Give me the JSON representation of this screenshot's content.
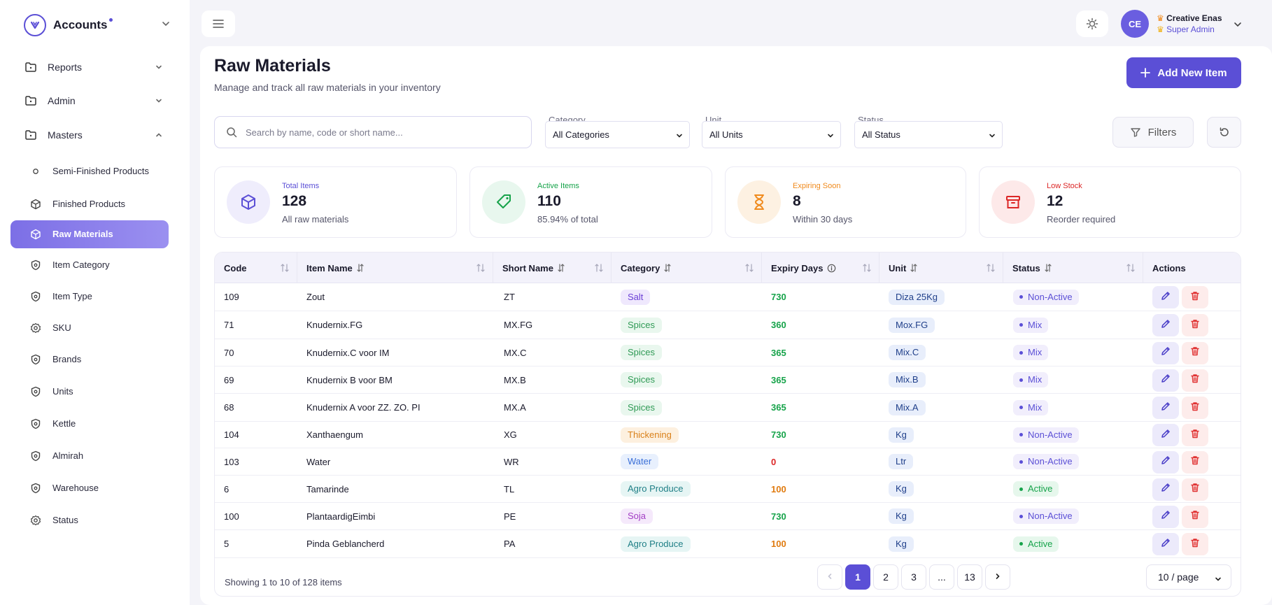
{
  "sidebar": {
    "brand": "Accounts",
    "sections": [
      {
        "label": "Reports",
        "icon": "folder-icon",
        "expanded": false
      },
      {
        "label": "Admin",
        "icon": "folder-icon",
        "expanded": false
      },
      {
        "label": "Masters",
        "icon": "folder-icon",
        "expanded": true
      }
    ],
    "items": [
      {
        "label": "Semi-Finished Products",
        "icon": "circle-icon"
      },
      {
        "label": "Finished Products",
        "icon": "box-icon"
      },
      {
        "label": "Raw Materials",
        "icon": "box-icon",
        "active": true
      },
      {
        "label": "Item Category",
        "icon": "shield-icon"
      },
      {
        "label": "Item Type",
        "icon": "shield-icon"
      },
      {
        "label": "SKU",
        "icon": "gear-icon"
      },
      {
        "label": "Brands",
        "icon": "shield-icon"
      },
      {
        "label": "Units",
        "icon": "shield-icon"
      },
      {
        "label": "Kettle",
        "icon": "shield-icon"
      },
      {
        "label": "Almirah",
        "icon": "shield-icon"
      },
      {
        "label": "Warehouse",
        "icon": "shield-icon"
      },
      {
        "label": "Status",
        "icon": "gear-icon"
      }
    ]
  },
  "header": {
    "avatar_initials": "CE",
    "user_name": "Creative Enas",
    "user_role": "Super Admin"
  },
  "page": {
    "title": "Raw Materials",
    "subtitle": "Manage and track all raw materials in your inventory",
    "add_button": "Add New Item"
  },
  "filters": {
    "search_placeholder": "Search by name, code or short name...",
    "category_label": "Category",
    "category_value": "All Categories",
    "unit_label": "Unit",
    "unit_value": "All Units",
    "status_label": "Status",
    "status_value": "All Status",
    "filters_button": "Filters"
  },
  "stats": [
    {
      "label": "Total Items",
      "value": "128",
      "note": "All raw materials",
      "color": "#5b4fd6",
      "bg": "#efedfc"
    },
    {
      "label": "Active Items",
      "value": "110",
      "note": "85.94% of total",
      "color": "#16a34a",
      "bg": "#e8f7ee"
    },
    {
      "label": "Expiring Soon",
      "value": "8",
      "note": "Within 30 days",
      "color": "#f08a1c",
      "bg": "#fdf1e2"
    },
    {
      "label": "Low Stock",
      "value": "12",
      "note": "Reorder required",
      "color": "#dc2626",
      "bg": "#fde9e9"
    }
  ],
  "table": {
    "columns": [
      "Code",
      "Item Name",
      "Short Name",
      "Category",
      "Expiry Days",
      "Unit",
      "Status",
      "Actions"
    ],
    "rows": [
      {
        "code": "109",
        "name": "Zout",
        "short": "ZT",
        "category": "Salt",
        "expiry": "730",
        "unit": "Diza 25Kg",
        "status": "Non-Active"
      },
      {
        "code": "71",
        "name": "Knudernix.FG",
        "short": "MX.FG",
        "category": "Spices",
        "expiry": "360",
        "unit": "Mox.FG",
        "status": "Mix"
      },
      {
        "code": "70",
        "name": "Knudernix.C voor IM",
        "short": "MX.C",
        "category": "Spices",
        "expiry": "365",
        "unit": "Mix.C",
        "status": "Mix"
      },
      {
        "code": "69",
        "name": "Knudernix B voor BM",
        "short": "MX.B",
        "category": "Spices",
        "expiry": "365",
        "unit": "Mix.B",
        "status": "Mix"
      },
      {
        "code": "68",
        "name": "Knudernix A voor ZZ. ZO. PI",
        "short": "MX.A",
        "category": "Spices",
        "expiry": "365",
        "unit": "Mix.A",
        "status": "Mix"
      },
      {
        "code": "104",
        "name": "Xanthaengum",
        "short": "XG",
        "category": "Thickening",
        "expiry": "730",
        "unit": "Kg",
        "status": "Non-Active"
      },
      {
        "code": "103",
        "name": "Water",
        "short": "WR",
        "category": "Water",
        "expiry": "0",
        "unit": "Ltr",
        "status": "Non-Active"
      },
      {
        "code": "6",
        "name": "Tamarinde",
        "short": "TL",
        "category": "Agro Produce",
        "expiry": "100",
        "unit": "Kg",
        "status": "Active"
      },
      {
        "code": "100",
        "name": "PlantaardigEimbi",
        "short": "PE",
        "category": "Soja",
        "expiry": "730",
        "unit": "Kg",
        "status": "Non-Active"
      },
      {
        "code": "5",
        "name": "Pinda Geblancherd",
        "short": "PA",
        "category": "Agro Produce",
        "expiry": "100",
        "unit": "Kg",
        "status": "Active"
      }
    ],
    "showing": "Showing 1 to 10 of 128 items",
    "pages": [
      "1",
      "2",
      "3",
      "...",
      "13"
    ],
    "per_page": "10 / page"
  }
}
